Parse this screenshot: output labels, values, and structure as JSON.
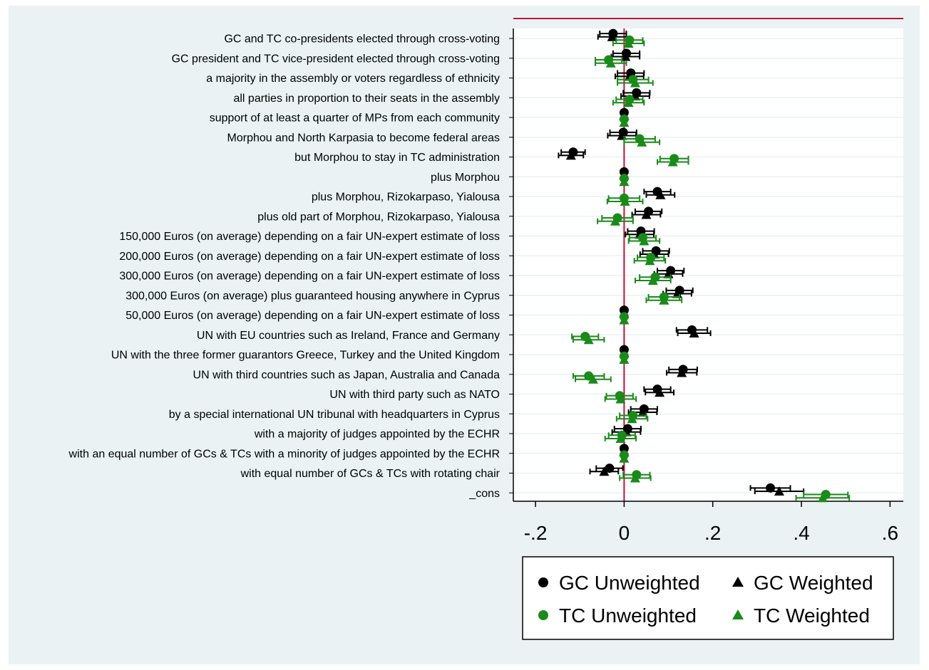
{
  "colors": {
    "gc": "#000000",
    "tc": "#1a8a1a",
    "zero_line": "#c0143c",
    "plot_bg": "#ffffff",
    "outer_bg": "#eaf2f3"
  },
  "chart_data": {
    "type": "scatter",
    "subtype": "coefficient-plot with 95% confidence intervals",
    "xlim": [
      -0.25,
      0.63
    ],
    "xticks": [
      -0.2,
      0,
      0.2,
      0.4,
      0.6
    ],
    "xtick_labels": [
      "-.2",
      "0",
      ".2",
      ".4",
      ".6"
    ],
    "reference_line_x": 0,
    "grid": "horizontal",
    "legend_position": "bottom-right",
    "categories": [
      "GC and TC co-presidents elected through cross-voting",
      "GC president and TC vice-president elected through cross-voting",
      "a majority in the assembly or voters regardless of ethnicity",
      "all parties in proportion to their seats in the assembly",
      "support of at least a quarter of MPs from each community",
      "Morphou and North Karpasia to become federal areas",
      "but Morphou to stay in TC administration",
      "plus Morphou",
      "plus Morphou, Rizokarpaso, Yialousa",
      "plus old part of Morphou, Rizokarpaso, Yialousa",
      "150,000 Euros (on average) depending on a fair UN-expert estimate of loss",
      "200,000 Euros (on average) depending on a fair UN-expert estimate of loss",
      "300,000 Euros (on average) depending on a fair UN-expert estimate of loss",
      "300,000 Euros (on average) plus guaranteed housing anywhere in Cyprus",
      "50,000 Euros (on average) depending on a fair UN-expert estimate of loss",
      "UN with EU countries such as Ireland, France and Germany",
      "UN with the three former guarantors Greece, Turkey and the United Kingdom",
      "UN with third countries such as Japan, Australia and Canada",
      "UN with third party such as NATO",
      "by a special international UN tribunal with headquarters in Cyprus",
      "with a majority of judges appointed by the ECHR",
      "with an equal number of GCs & TCs with a minority of judges appointed by the ECHR",
      "with equal number of GCs & TCs with rotating chair",
      "_cons"
    ],
    "series": [
      {
        "name": "GC Unweighted",
        "marker": "circle",
        "color": "#000000",
        "offset": -0.25,
        "values": [
          -0.025,
          0.005,
          0.015,
          0.028,
          0,
          -0.002,
          -0.115,
          0,
          0.075,
          0.055,
          0.038,
          0.072,
          0.105,
          0.125,
          0,
          0.153,
          0,
          0.133,
          0.075,
          0.045,
          0.008,
          0,
          -0.033,
          0.33
        ],
        "ci_halfwidth": [
          0.03,
          0.03,
          0.03,
          0.03,
          0,
          0.03,
          0.027,
          0,
          0.03,
          0.03,
          0.03,
          0.03,
          0.03,
          0.03,
          0,
          0.035,
          0,
          0.032,
          0.03,
          0.03,
          0.03,
          0,
          0.03,
          0.045
        ]
      },
      {
        "name": "GC Weighted",
        "marker": "triangle",
        "color": "#000000",
        "offset": -0.08,
        "values": [
          -0.027,
          0.003,
          0.012,
          0.025,
          0,
          -0.005,
          -0.12,
          0,
          0.082,
          0.05,
          0.035,
          0.068,
          0.1,
          0.12,
          0,
          0.158,
          0,
          0.13,
          0.08,
          0.042,
          0.005,
          0,
          -0.045,
          0.35
        ],
        "ci_halfwidth": [
          0.032,
          0.032,
          0.032,
          0.032,
          0,
          0.032,
          0.028,
          0,
          0.032,
          0.032,
          0.032,
          0.032,
          0.032,
          0.032,
          0,
          0.037,
          0,
          0.034,
          0.032,
          0.032,
          0.032,
          0,
          0.032,
          0.055
        ]
      },
      {
        "name": "TC Unweighted",
        "marker": "circle",
        "color": "#1a8a1a",
        "offset": 0.08,
        "values": [
          0.012,
          -0.035,
          0.02,
          0.012,
          0,
          0.035,
          0.113,
          0,
          0,
          -0.015,
          0.042,
          0.06,
          0.07,
          0.09,
          0,
          -0.088,
          0,
          -0.08,
          -0.01,
          0.02,
          -0.005,
          0,
          0.028,
          0.455
        ],
        "ci_halfwidth": [
          0.03,
          0.03,
          0.035,
          0.03,
          0,
          0.035,
          0.032,
          0,
          0.035,
          0.035,
          0.03,
          0.03,
          0.035,
          0.035,
          0,
          0.03,
          0,
          0.035,
          0.03,
          0.03,
          0.03,
          0,
          0.03,
          0.05
        ]
      },
      {
        "name": "TC Weighted",
        "marker": "triangle",
        "color": "#1a8a1a",
        "offset": 0.25,
        "values": [
          0.01,
          -0.03,
          0.025,
          0.01,
          0,
          0.04,
          0.11,
          0,
          0.002,
          -0.02,
          0.045,
          0.058,
          0.065,
          0.09,
          0,
          -0.08,
          0,
          -0.07,
          -0.008,
          0.018,
          -0.008,
          0,
          0.025,
          0.448
        ],
        "ci_halfwidth": [
          0.035,
          0.035,
          0.04,
          0.035,
          0,
          0.04,
          0.035,
          0,
          0.04,
          0.04,
          0.035,
          0.035,
          0.04,
          0.04,
          0,
          0.035,
          0,
          0.04,
          0.035,
          0.035,
          0.035,
          0,
          0.035,
          0.06
        ]
      }
    ]
  },
  "legend": {
    "items": [
      {
        "label": "GC Unweighted",
        "marker": "circle",
        "color": "#000000"
      },
      {
        "label": "GC Weighted",
        "marker": "triangle",
        "color": "#000000"
      },
      {
        "label": "TC Unweighted",
        "marker": "circle",
        "color": "#1a8a1a"
      },
      {
        "label": "TC Weighted",
        "marker": "triangle",
        "color": "#1a8a1a"
      }
    ]
  }
}
